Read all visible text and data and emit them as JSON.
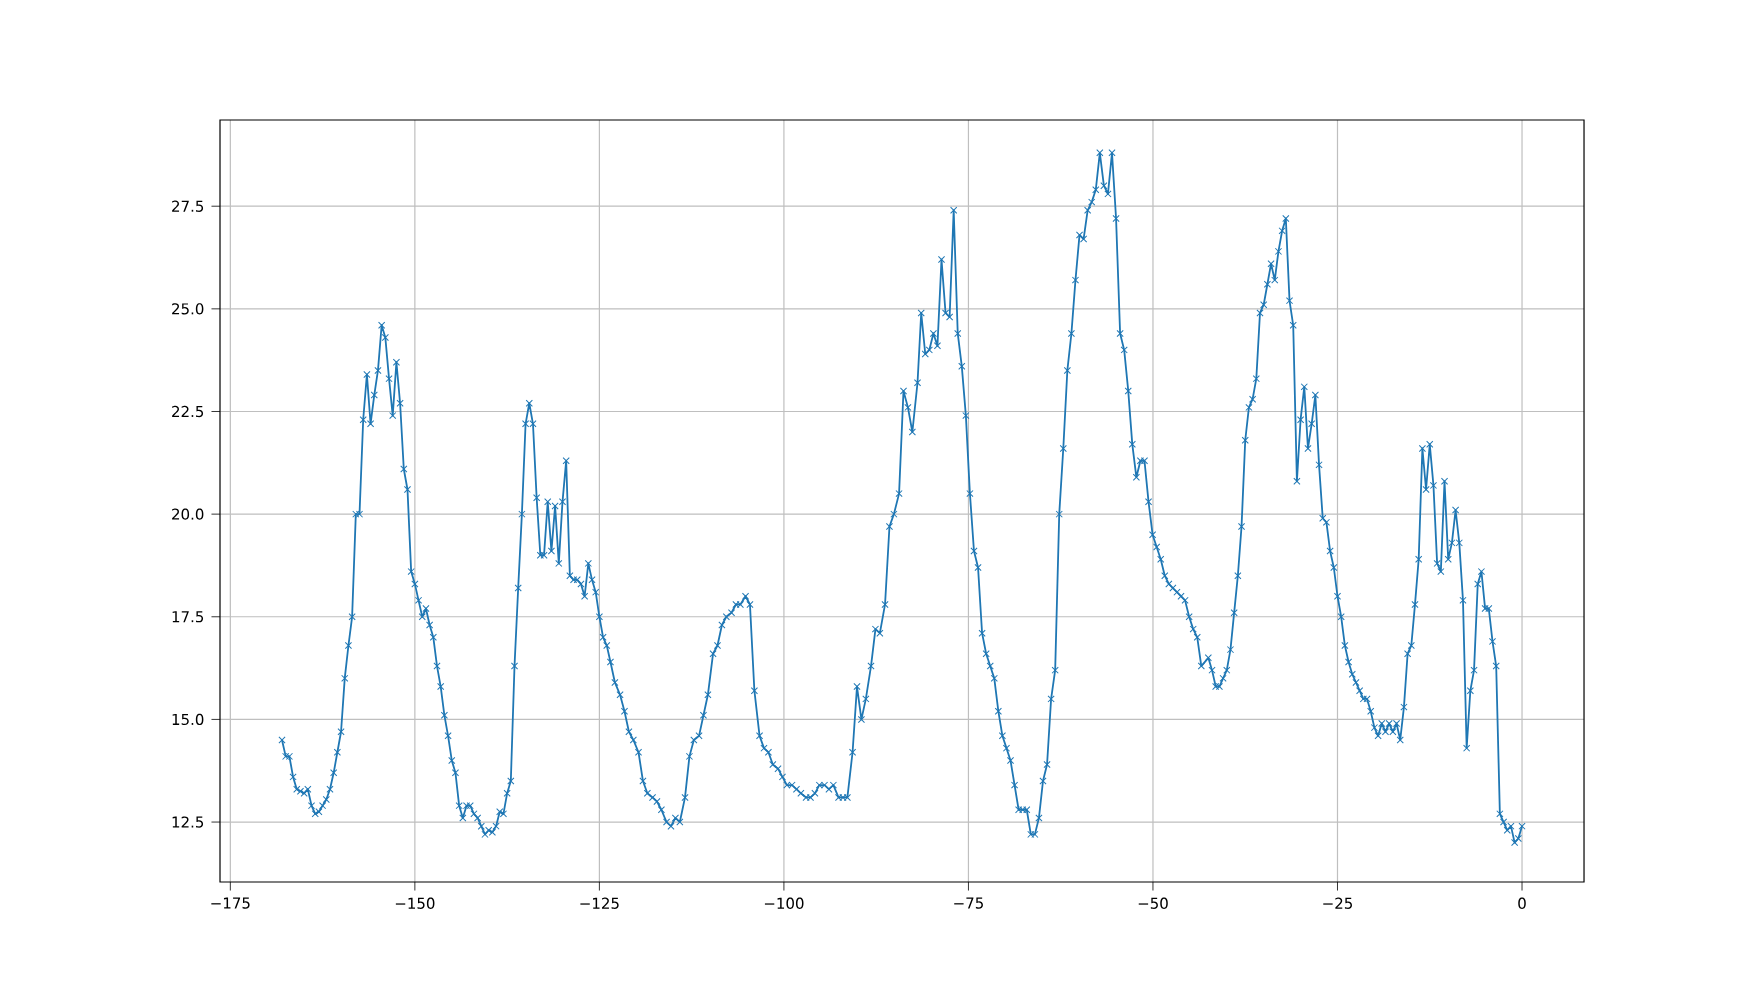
{
  "chart_data": {
    "type": "line",
    "xlim": [
      -176.4,
      8.4
    ],
    "ylim": [
      11.04,
      29.6
    ],
    "xticks": [
      {
        "value": -175,
        "label": "−175"
      },
      {
        "value": -150,
        "label": "−150"
      },
      {
        "value": -125,
        "label": "−125"
      },
      {
        "value": -100,
        "label": "−100"
      },
      {
        "value": -75,
        "label": "−75"
      },
      {
        "value": -50,
        "label": "−50"
      },
      {
        "value": -25,
        "label": "−25"
      },
      0
    ],
    "yticks": [
      12.5,
      {
        "value": 15,
        "label": "15.0"
      },
      17.5,
      {
        "value": 20,
        "label": "20.0"
      },
      22.5,
      {
        "value": 25,
        "label": "25.0"
      },
      27.5
    ],
    "grid": true,
    "marker": "cross",
    "line_style": "solid",
    "series": [
      {
        "color": "#1f77b4",
        "x": [
          -168,
          -167.5,
          -167,
          -166.5,
          -166,
          -165.5,
          -165,
          -164.5,
          -164,
          -163.5,
          -163,
          -162.5,
          -162,
          -161.5,
          -161,
          -160.5,
          -160,
          -159.5,
          -159,
          -158.5,
          -158,
          -157.5,
          -157,
          -156.5,
          -156,
          -155.5,
          -155,
          -154.5,
          -154,
          -153.5,
          -153,
          -152.5,
          -152,
          -151.5,
          -151,
          -150.5,
          -150,
          -149.5,
          -149,
          -148.5,
          -148,
          -147.5,
          -147,
          -146.5,
          -146,
          -145.5,
          -145,
          -144.5,
          -144,
          -143.5,
          -143,
          -142.5,
          -142,
          -141.5,
          -141,
          -140.5,
          -140,
          -139.5,
          -139,
          -138.5,
          -138,
          -137.5,
          -137,
          -136.5,
          -136,
          -135.5,
          -135,
          -134.5,
          -134,
          -133.5,
          -133,
          -132.5,
          -132,
          -131.5,
          -131,
          -130.5,
          -130,
          -129.5,
          -129,
          -128.5,
          -128,
          -127.5,
          -127,
          -126.5,
          -126,
          -125.5,
          -125,
          -124.5,
          -124,
          -123.5,
          -122.9,
          -122.2,
          -121.6,
          -121.0,
          -120.4,
          -119.7,
          -119.1,
          -118.5,
          -117.8,
          -117.2,
          -116.6,
          -115.9,
          -115.3,
          -114.7,
          -114.1,
          -113.4,
          -112.8,
          -112.2,
          -111.5,
          -110.9,
          -110.3,
          -109.6,
          -109.0,
          -108.4,
          -107.8,
          -107.1,
          -106.5,
          -105.9,
          -105.2,
          -104.6,
          -104.0,
          -103.3,
          -102.7,
          -102.1,
          -101.5,
          -100.8,
          -100.2,
          -99.6,
          -98.9,
          -98.3,
          -97.7,
          -97.0,
          -96.4,
          -95.8,
          -95.2,
          -94.5,
          -93.9,
          -93.3,
          -92.6,
          -92.0,
          -91.4,
          -90.7,
          -90.1,
          -89.5,
          -88.9,
          -88.2,
          -87.6,
          -87.0,
          -86.3,
          -85.7,
          -85.1,
          -84.4,
          -83.8,
          -83.2,
          -82.6,
          -81.9,
          -81.4,
          -80.85,
          -80.3,
          -79.75,
          -79.2,
          -78.65,
          -78.1,
          -77.55,
          -77.0,
          -76.45,
          -75.9,
          -75.35,
          -74.8,
          -74.25,
          -73.7,
          -73.15,
          -72.6,
          -72.05,
          -71.5,
          -70.95,
          -70.4,
          -69.85,
          -69.3,
          -68.75,
          -68.2,
          -67.65,
          -67.1,
          -66.55,
          -66.0,
          -65.45,
          -64.9,
          -64.35,
          -63.8,
          -63.25,
          -62.7,
          -62.15,
          -61.6,
          -61.05,
          -60.5,
          -59.95,
          -59.4,
          -58.85,
          -58.3,
          -57.75,
          -57.2,
          -56.65,
          -56.1,
          -55.55,
          -55.0,
          -54.45,
          -53.9,
          -53.35,
          -52.8,
          -52.25,
          -51.7,
          -51.15,
          -50.6,
          -50.05,
          -49.5,
          -48.95,
          -48.4,
          -47.85,
          -47.3,
          -46.75,
          -46.2,
          -45.65,
          -45.1,
          -44.55,
          -44.0,
          -43.45,
          -42.5,
          -42,
          -41.5,
          -41,
          -40.5,
          -40,
          -39.5,
          -39,
          -38.5,
          -38,
          -37.5,
          -37,
          -36.5,
          -36,
          -35.5,
          -35,
          -34.5,
          -34,
          -33.5,
          -33,
          -32.5,
          -32,
          -31.5,
          -31,
          -30.5,
          -30,
          -29.5,
          -29,
          -28.5,
          -28,
          -27.5,
          -27,
          -26.5,
          -26,
          -25.5,
          -25,
          -24.5,
          -24,
          -23.5,
          -23,
          -22.5,
          -22,
          -21.5,
          -21,
          -20.5,
          -20,
          -19.5,
          -19,
          -18.5,
          -18,
          -17.5,
          -17,
          -16.5,
          -16,
          -15.5,
          -15,
          -14.5,
          -14,
          -13.5,
          -13,
          -12.5,
          -12,
          -11.5,
          -11,
          -10.5,
          -10,
          -9.5,
          -9,
          -8.5,
          -8,
          -7.5,
          -7,
          -6.5,
          -6,
          -5.5,
          -5,
          -4.5,
          -4,
          -3.5,
          -3,
          -2.5,
          -2,
          -1.5,
          -1,
          -0.5,
          0
        ],
        "values": [
          14.5,
          14.1,
          14.1,
          13.6,
          13.3,
          13.25,
          13.2,
          13.3,
          12.9,
          12.7,
          12.75,
          12.9,
          13.05,
          13.3,
          13.7,
          14.2,
          14.7,
          16.0,
          16.8,
          17.5,
          20.0,
          20.0,
          22.3,
          23.4,
          22.2,
          22.9,
          23.5,
          24.6,
          24.3,
          23.3,
          22.4,
          23.7,
          22.7,
          21.1,
          20.6,
          18.6,
          18.3,
          17.9,
          17.5,
          17.7,
          17.3,
          17.0,
          16.3,
          15.8,
          15.1,
          14.6,
          14.0,
          13.7,
          12.9,
          12.6,
          12.9,
          12.9,
          12.7,
          12.6,
          12.4,
          12.2,
          12.3,
          12.25,
          12.4,
          12.75,
          12.7,
          13.2,
          13.5,
          16.3,
          18.2,
          20.0,
          22.2,
          22.7,
          22.2,
          20.4,
          19.0,
          19.0,
          20.3,
          19.1,
          20.2,
          18.8,
          20.3,
          21.3,
          18.5,
          18.4,
          18.4,
          18.3,
          18.0,
          18.8,
          18.4,
          18.1,
          17.5,
          17.0,
          16.8,
          16.4,
          15.9,
          15.6,
          15.2,
          14.7,
          14.5,
          14.2,
          13.5,
          13.2,
          13.1,
          13.0,
          12.8,
          12.5,
          12.4,
          12.6,
          12.5,
          13.1,
          14.1,
          14.5,
          14.6,
          15.1,
          15.6,
          16.6,
          16.8,
          17.3,
          17.5,
          17.6,
          17.8,
          17.8,
          18.0,
          17.8,
          15.7,
          14.6,
          14.3,
          14.2,
          13.9,
          13.8,
          13.6,
          13.4,
          13.4,
          13.3,
          13.2,
          13.1,
          13.1,
          13.2,
          13.4,
          13.4,
          13.3,
          13.4,
          13.1,
          13.1,
          13.1,
          14.2,
          15.8,
          15.0,
          15.5,
          16.3,
          17.2,
          17.1,
          17.8,
          19.7,
          20.0,
          20.5,
          23.0,
          22.6,
          22.0,
          23.2,
          24.9,
          23.9,
          24.0,
          24.4,
          24.1,
          26.2,
          24.9,
          24.8,
          27.4,
          24.4,
          23.6,
          22.4,
          20.5,
          19.1,
          18.7,
          17.1,
          16.6,
          16.3,
          16.0,
          15.2,
          14.6,
          14.3,
          14.0,
          13.4,
          12.8,
          12.8,
          12.8,
          12.2,
          12.2,
          12.6,
          13.5,
          13.9,
          15.5,
          16.2,
          20.0,
          21.6,
          23.5,
          24.4,
          25.7,
          26.8,
          26.7,
          27.4,
          27.6,
          27.9,
          28.8,
          28.0,
          27.8,
          28.8,
          27.2,
          24.4,
          24.0,
          23.0,
          21.7,
          20.9,
          21.3,
          21.3,
          20.3,
          19.5,
          19.2,
          18.9,
          18.5,
          18.3,
          18.2,
          18.1,
          18.0,
          17.9,
          17.5,
          17.2,
          17.0,
          16.3,
          16.5,
          16.2,
          15.8,
          15.8,
          16.0,
          16.2,
          16.7,
          17.6,
          18.5,
          19.7,
          21.8,
          22.6,
          22.8,
          23.3,
          24.9,
          25.1,
          25.6,
          26.1,
          25.7,
          26.4,
          26.9,
          27.2,
          25.2,
          24.6,
          20.8,
          22.3,
          23.1,
          21.6,
          22.2,
          22.9,
          21.2,
          19.9,
          19.8,
          19.1,
          18.7,
          18.0,
          17.5,
          16.8,
          16.4,
          16.1,
          15.9,
          15.7,
          15.5,
          15.5,
          15.2,
          14.8,
          14.6,
          14.9,
          14.7,
          14.9,
          14.7,
          14.9,
          14.5,
          15.3,
          16.6,
          16.8,
          17.8,
          18.9,
          21.6,
          20.6,
          21.7,
          20.7,
          18.8,
          18.6,
          20.8,
          18.9,
          19.3,
          20.1,
          19.3,
          17.9,
          14.3,
          15.7,
          16.2,
          18.3,
          18.6,
          17.7,
          17.7,
          16.9,
          16.3,
          12.7,
          12.5,
          12.3,
          12.4,
          12.0,
          12.1,
          12.4
        ]
      }
    ]
  }
}
